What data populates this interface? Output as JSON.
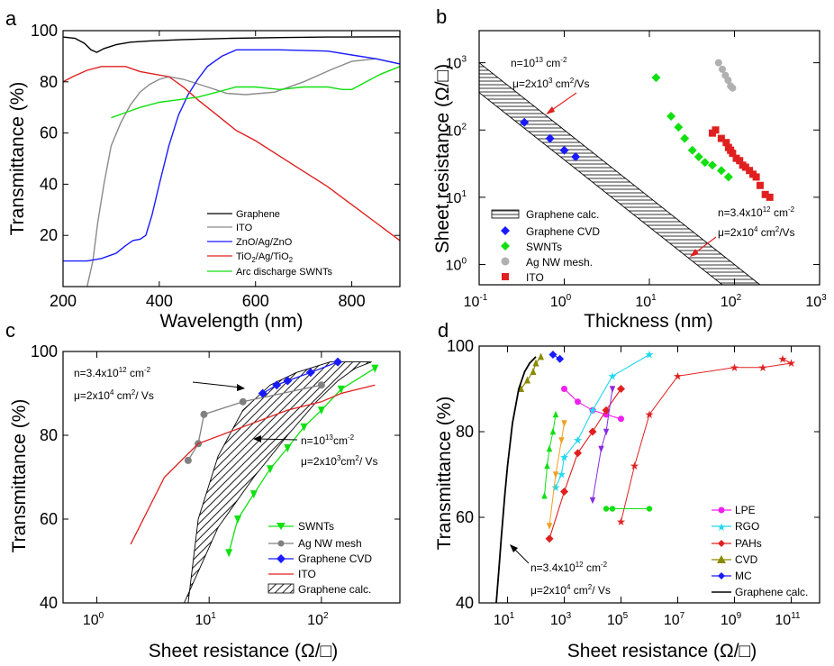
{
  "chart_data": [
    {
      "panel": "a",
      "type": "line",
      "xlabel": "Wavelength (nm)",
      "ylabel": "Transmittance (%)",
      "xlim": [
        200,
        900
      ],
      "ylim": [
        0,
        100
      ],
      "xticks": [
        "200",
        "400",
        "600",
        "800"
      ],
      "yticks": [
        "20",
        "40",
        "60",
        "80",
        "100"
      ],
      "legend": [
        "Graphene",
        "ITO",
        "ZnO/Ag/ZnO",
        "TiO2/Ag/TiO2",
        "Arc discharge SWNTs"
      ],
      "series": [
        {
          "name": "Graphene",
          "color": "#000000",
          "x": [
            200,
            225,
            245,
            258,
            270,
            285,
            310,
            340,
            380,
            450,
            550,
            650,
            750,
            900
          ],
          "y": [
            97.5,
            97,
            95,
            92.5,
            91.5,
            93,
            94.5,
            95.5,
            96,
            96.5,
            97,
            97.3,
            97.5,
            97.6
          ]
        },
        {
          "name": "ITO",
          "color": "#8a8a8a",
          "x": [
            250,
            262,
            272,
            285,
            300,
            320,
            340,
            360,
            380,
            400,
            420,
            450,
            500,
            540,
            580,
            640,
            700,
            760,
            800,
            850,
            900
          ],
          "y": [
            0,
            10,
            25,
            40,
            55,
            64,
            71,
            76,
            79,
            81,
            82,
            81,
            78,
            75.5,
            75,
            76,
            80,
            85,
            88,
            89,
            87
          ]
        },
        {
          "name": "ZnO/Ag/ZnO",
          "color": "#1a1aff",
          "x": [
            200,
            220,
            250,
            280,
            310,
            330,
            345,
            360,
            372,
            385,
            400,
            420,
            440,
            460,
            480,
            500,
            530,
            560,
            650,
            750,
            800,
            850,
            900
          ],
          "y": [
            10,
            10,
            10,
            11,
            13,
            16,
            18,
            18.5,
            20,
            28,
            40,
            55,
            67,
            75,
            81,
            86,
            90,
            92.5,
            92.5,
            92,
            90.5,
            89,
            87
          ]
        },
        {
          "name": "TiO2/Ag/TiO2",
          "color": "#e02020",
          "x": [
            200,
            220,
            250,
            280,
            300,
            330,
            360,
            390,
            420,
            450,
            480,
            520,
            560,
            600,
            650,
            700,
            750,
            800,
            850,
            900
          ],
          "y": [
            80,
            82,
            84.5,
            86,
            86,
            86,
            84,
            83,
            82,
            78,
            73,
            67,
            61,
            57,
            51,
            45,
            39,
            32,
            25,
            18
          ]
        },
        {
          "name": "Arc discharge SWNTs",
          "color": "#10e010",
          "x": [
            300,
            330,
            360,
            400,
            440,
            480,
            520,
            560,
            600,
            650,
            700,
            750,
            780,
            800,
            830,
            860,
            900
          ],
          "y": [
            66,
            68,
            70,
            72,
            73,
            74,
            76,
            78,
            78,
            77,
            78,
            78,
            77,
            77,
            80,
            83,
            86
          ]
        }
      ]
    },
    {
      "panel": "b",
      "type": "scatter",
      "xlabel": "Thickness (nm)",
      "ylabel": "Sheet resistance (Ω/□)",
      "xscale": "log",
      "yscale": "log",
      "xlim": [
        0.1,
        1000
      ],
      "ylim": [
        0.5,
        3000
      ],
      "xtick_mantissa": "10",
      "xtick_exponents": [
        "-1",
        "0",
        "1",
        "2",
        "3"
      ],
      "ytick_mantissa": "10",
      "ytick_exponents": [
        "0",
        "1",
        "2",
        "3"
      ],
      "annotation_upper": {
        "line1": "n=10",
        "exp1": "13",
        "unit1": " cm",
        "exp1b": "-2",
        "line2": "μ=2x10",
        "exp2": "3",
        "unit2": " cm",
        "exp2b": "2",
        "tail2": "/Vs"
      },
      "annotation_lower": {
        "line1": "n=3.4x10",
        "exp1": "12",
        "unit1": " cm",
        "exp1b": "-2",
        "line2": "μ=2x10",
        "exp2": "4",
        "unit2": " cm",
        "exp2b": "2",
        "tail2": "/Vs"
      },
      "band": {
        "name": "Graphene calc.",
        "upper": [
          [
            0.1,
            1000
          ],
          [
            200,
            0.5
          ]
        ],
        "lower": [
          [
            0.1,
            360
          ],
          [
            200,
            0.18
          ]
        ]
      },
      "series": [
        {
          "name": "Graphene CVD",
          "color": "#1a1aff",
          "marker": "diamond",
          "x": [
            0.34,
            0.68,
            1.0,
            1.36
          ],
          "y": [
            130,
            75,
            50,
            40
          ]
        },
        {
          "name": "SWNTs",
          "color": "#10e010",
          "marker": "diamond",
          "x": [
            12,
            18,
            22,
            26,
            32,
            38,
            45,
            55,
            70,
            85
          ],
          "y": [
            600,
            160,
            110,
            75,
            50,
            40,
            33,
            30,
            25,
            20
          ]
        },
        {
          "name": "Ag NW mesh.",
          "color": "#b0b0b0",
          "marker": "circle",
          "x": [
            65,
            72,
            78,
            84,
            90,
            95
          ],
          "y": [
            1000,
            800,
            650,
            550,
            450,
            420
          ]
        },
        {
          "name": "ITO",
          "color": "#e02020",
          "marker": "square",
          "x": [
            55,
            60,
            70,
            80,
            85,
            90,
            95,
            105,
            115,
            125,
            135,
            150,
            165,
            180,
            200,
            230,
            260
          ],
          "y": [
            90,
            100,
            75,
            65,
            55,
            50,
            45,
            38,
            35,
            30,
            28,
            25,
            22,
            20,
            15,
            11,
            10
          ]
        }
      ]
    },
    {
      "panel": "c",
      "type": "line",
      "xlabel": "Sheet resistance (Ω/□)",
      "ylabel": "Transmittance (%)",
      "xscale": "log",
      "xlim": [
        0.5,
        500
      ],
      "ylim": [
        40,
        100
      ],
      "xtick_mantissa": "10",
      "xtick_exponents": [
        "0",
        "1",
        "2"
      ],
      "yticks": [
        "40",
        "60",
        "80",
        "100"
      ],
      "annotation_upper": {
        "line1": "n=3.4x10",
        "exp1": "12",
        "unit1": " cm",
        "exp1b": "-2",
        "line2": "μ=2x10",
        "exp2": "4",
        "unit2": " cm",
        "exp2b": "2",
        "tail2": "/ Vs"
      },
      "annotation_lower": {
        "line1": "n=10",
        "exp1": "13",
        "unit1": "cm",
        "exp1b": "-2",
        "line2": "μ=2x10",
        "exp2": "3",
        "unit2": "cm",
        "exp2b": "2",
        "tail2": "/ Vs"
      },
      "band": {
        "name": "Graphene calc."
      },
      "series": [
        {
          "name": "SWNTs",
          "color": "#10e010",
          "marker": "triangle-down",
          "x": [
            15,
            18,
            25,
            35,
            50,
            70,
            100,
            150,
            300
          ],
          "y": [
            52,
            60,
            66,
            72,
            77,
            82,
            86,
            91,
            96
          ]
        },
        {
          "name": "Ag NW mesh",
          "color": "#808080",
          "marker": "circle",
          "x": [
            6.5,
            8,
            9,
            20,
            100
          ],
          "y": [
            74,
            78,
            85,
            88,
            92
          ]
        },
        {
          "name": "Graphene CVD",
          "color": "#1a1aff",
          "marker": "diamond",
          "x": [
            30,
            40,
            50,
            80,
            140
          ],
          "y": [
            90,
            92,
            93,
            95,
            97.5
          ]
        },
        {
          "name": "ITO",
          "color": "#e02020",
          "x": [
            2,
            4,
            8,
            20,
            50,
            100,
            150,
            300
          ],
          "y": [
            54,
            70,
            78,
            82,
            86,
            88,
            90,
            92
          ]
        }
      ]
    },
    {
      "panel": "d",
      "type": "scatter",
      "xlabel": "Sheet resistance (Ω/□)",
      "ylabel": "Transmittance (%)",
      "xscale": "log",
      "xlim": [
        1,
        1000000000000.0
      ],
      "ylim": [
        40,
        100
      ],
      "xtick_mantissa": "10",
      "xtick_exponents": [
        "1",
        "3",
        "5",
        "7",
        "9",
        "11"
      ],
      "yticks": [
        "40",
        "60",
        "80",
        "100"
      ],
      "annotation": {
        "line1": "n=3.4x10",
        "exp1": "12",
        "unit1": " cm",
        "exp1b": "-2",
        "line2": "μ=2x10",
        "exp2": "4",
        "unit2": " cm",
        "exp2b": "2",
        "tail2": "/ Vs"
      },
      "legend": [
        "LPE",
        "RGO",
        "PAHs",
        "CVD",
        "MC",
        "Graphene calc."
      ],
      "series": [
        {
          "name": "LPE",
          "color": "#f020f0",
          "marker": "circle",
          "x": [
            1000.0,
            3000.0,
            10000.0,
            30000.0,
            100000.0
          ],
          "y": [
            90,
            87,
            85,
            84,
            83
          ]
        },
        {
          "name": "RGO",
          "color": "#20d8f0",
          "marker": "star",
          "x": [
            500,
            800,
            1000.0,
            3000.0,
            10000.0,
            50000.0,
            1000000.0
          ],
          "y": [
            67,
            70,
            74,
            78,
            85,
            93,
            98
          ]
        },
        {
          "name": "PAHs",
          "color": "#e02020",
          "marker": "diamond",
          "x": [
            300,
            1000.0,
            3000.0,
            10000.0,
            30000.0,
            100000.0
          ],
          "y": [
            55,
            66,
            75,
            80,
            85,
            90
          ]
        },
        {
          "name": "CVD",
          "color": "#8a8a00",
          "marker": "triangle-up",
          "x": [
            30,
            50,
            80,
            100,
            150
          ],
          "y": [
            90,
            92,
            94,
            96,
            97.5
          ]
        },
        {
          "name": "MC",
          "color": "#1a1aff",
          "marker": "diamond",
          "x": [
            400,
            700
          ],
          "y": [
            98,
            97
          ]
        },
        {
          "name": "Graphene calc.",
          "color": "#000000",
          "x": [
            4,
            5,
            6,
            8,
            10,
            15,
            25,
            40,
            60,
            100
          ],
          "y": [
            40,
            48,
            55,
            65,
            72,
            82,
            90,
            94,
            96,
            97.5
          ]
        }
      ]
    }
  ],
  "panel_labels": [
    "a",
    "b",
    "c",
    "d"
  ]
}
